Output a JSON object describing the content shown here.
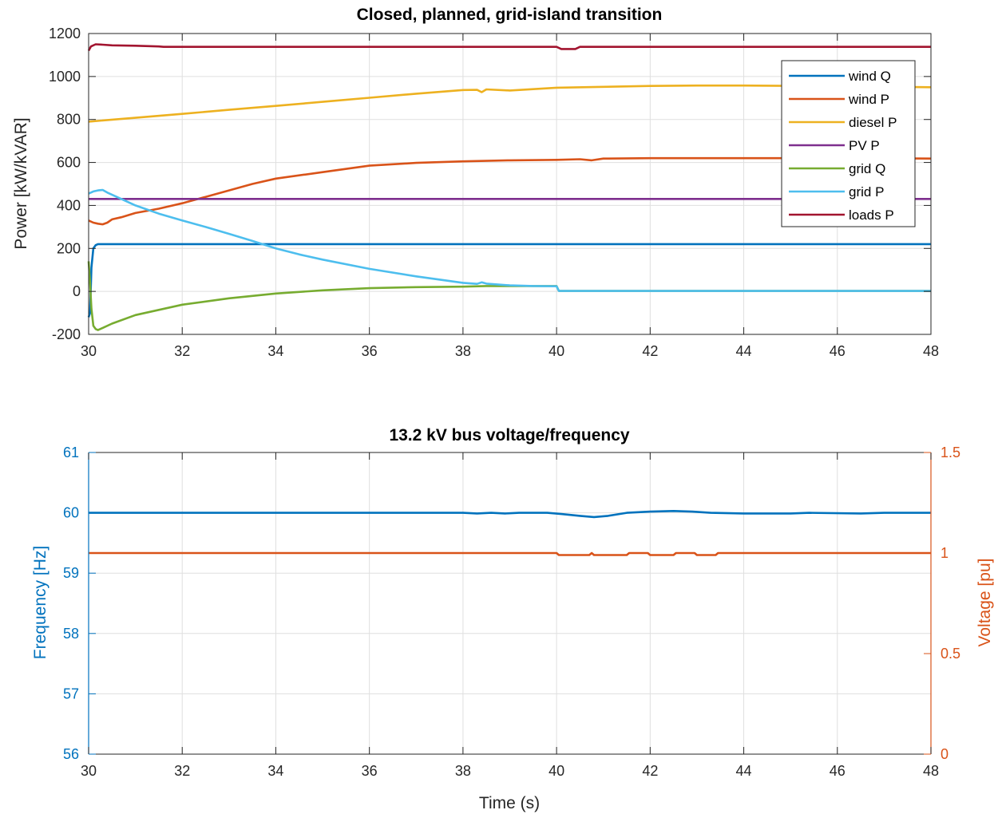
{
  "charts": [
    {
      "id": "top",
      "type": "line",
      "title": "Closed, planned, grid-island transition",
      "xlabel": "",
      "ylabel": "Power [kW/kVAR]",
      "xlim": [
        30,
        48
      ],
      "ylim": [
        -200,
        1200
      ],
      "xticks": [
        30,
        32,
        34,
        36,
        38,
        40,
        42,
        44,
        46,
        48
      ],
      "yticks": [
        -200,
        0,
        200,
        400,
        600,
        800,
        1000,
        1200
      ],
      "grid": true,
      "legend_position": "top-right",
      "series": [
        {
          "name": "wind Q",
          "color": "#0072BD",
          "points": [
            [
              30.0,
              -120
            ],
            [
              30.03,
              -100
            ],
            [
              30.06,
              110
            ],
            [
              30.1,
              200
            ],
            [
              30.15,
              215
            ],
            [
              30.2,
              220
            ],
            [
              31,
              220
            ],
            [
              40,
              220
            ],
            [
              48,
              220
            ]
          ]
        },
        {
          "name": "wind P",
          "color": "#D95319",
          "points": [
            [
              30.0,
              330
            ],
            [
              30.1,
              320
            ],
            [
              30.2,
              315
            ],
            [
              30.3,
              312
            ],
            [
              30.4,
              320
            ],
            [
              30.5,
              335
            ],
            [
              30.7,
              345
            ],
            [
              31,
              365
            ],
            [
              31.5,
              385
            ],
            [
              32,
              410
            ],
            [
              32.5,
              440
            ],
            [
              33,
              470
            ],
            [
              33.5,
              500
            ],
            [
              34,
              525
            ],
            [
              35,
              555
            ],
            [
              36,
              585
            ],
            [
              37,
              598
            ],
            [
              38,
              605
            ],
            [
              39,
              610
            ],
            [
              40,
              612
            ],
            [
              40.5,
              615
            ],
            [
              40.75,
              610
            ],
            [
              41,
              618
            ],
            [
              42,
              620
            ],
            [
              44,
              620
            ],
            [
              46,
              620
            ],
            [
              48,
              618
            ]
          ]
        },
        {
          "name": "diesel P",
          "color": "#EDB120",
          "points": [
            [
              30.0,
              790
            ],
            [
              31,
              808
            ],
            [
              32,
              826
            ],
            [
              33,
              845
            ],
            [
              34,
              863
            ],
            [
              35,
              882
            ],
            [
              36,
              901
            ],
            [
              37,
              920
            ],
            [
              38,
              937
            ],
            [
              38.3,
              938
            ],
            [
              38.4,
              927
            ],
            [
              38.5,
              940
            ],
            [
              39,
              935
            ],
            [
              40,
              948
            ],
            [
              41,
              952
            ],
            [
              42,
              956
            ],
            [
              43,
              958
            ],
            [
              44,
              958
            ],
            [
              46,
              955
            ],
            [
              48,
              950
            ]
          ]
        },
        {
          "name": "PV P",
          "color": "#7E2F8E",
          "points": [
            [
              30.0,
              430
            ],
            [
              48,
              430
            ]
          ]
        },
        {
          "name": "grid Q",
          "color": "#77AC30",
          "points": [
            [
              30.0,
              140
            ],
            [
              30.03,
              40
            ],
            [
              30.06,
              -80
            ],
            [
              30.1,
              -160
            ],
            [
              30.15,
              -175
            ],
            [
              30.2,
              -180
            ],
            [
              30.3,
              -170
            ],
            [
              30.5,
              -150
            ],
            [
              31,
              -110
            ],
            [
              32,
              -62
            ],
            [
              33,
              -32
            ],
            [
              34,
              -10
            ],
            [
              35,
              5
            ],
            [
              36,
              15
            ],
            [
              37,
              20
            ],
            [
              38,
              22
            ],
            [
              38.5,
              25
            ],
            [
              39,
              25
            ],
            [
              40,
              25
            ],
            [
              40.05,
              2
            ],
            [
              48,
              2
            ]
          ]
        },
        {
          "name": "grid P",
          "color": "#4DBEEE",
          "points": [
            [
              30.0,
              455
            ],
            [
              30.1,
              465
            ],
            [
              30.2,
              470
            ],
            [
              30.3,
              472
            ],
            [
              30.4,
              460
            ],
            [
              30.6,
              440
            ],
            [
              31,
              400
            ],
            [
              31.5,
              362
            ],
            [
              32,
              330
            ],
            [
              32.5,
              300
            ],
            [
              33,
              268
            ],
            [
              33.5,
              235
            ],
            [
              34,
              200
            ],
            [
              34.5,
              172
            ],
            [
              35,
              148
            ],
            [
              36,
              105
            ],
            [
              37,
              70
            ],
            [
              38,
              40
            ],
            [
              38.3,
              35
            ],
            [
              38.4,
              42
            ],
            [
              38.5,
              36
            ],
            [
              39,
              28
            ],
            [
              39.5,
              25
            ],
            [
              40,
              24
            ],
            [
              40.05,
              2
            ],
            [
              48,
              2
            ]
          ]
        },
        {
          "name": "loads P",
          "color": "#A2142F",
          "points": [
            [
              30.0,
              1120
            ],
            [
              30.05,
              1140
            ],
            [
              30.15,
              1150
            ],
            [
              30.3,
              1148
            ],
            [
              30.5,
              1145
            ],
            [
              31,
              1143
            ],
            [
              31.5,
              1140
            ],
            [
              31.6,
              1138
            ],
            [
              40,
              1138
            ],
            [
              40.1,
              1128
            ],
            [
              40.4,
              1128
            ],
            [
              40.5,
              1138
            ],
            [
              48,
              1138
            ]
          ]
        }
      ]
    },
    {
      "id": "bottom",
      "type": "line",
      "title": "13.2 kV bus voltage/frequency",
      "xlabel": "Time (s)",
      "ylabel_left": "Frequency [Hz]",
      "ylabel_right": "Voltage [pu]",
      "xlim": [
        30,
        48
      ],
      "ylim_left": [
        56,
        61
      ],
      "ylim_right": [
        0,
        1.5
      ],
      "xticks": [
        30,
        32,
        34,
        36,
        38,
        40,
        42,
        44,
        46,
        48
      ],
      "yticks_left": [
        56,
        57,
        58,
        59,
        60,
        61
      ],
      "yticks_right": [
        0,
        0.5,
        1,
        1.5
      ],
      "left_color": "#0072BD",
      "right_color": "#D95319",
      "grid": true,
      "series": [
        {
          "name": "",
          "axis": "left",
          "color": "#0072BD",
          "points": [
            [
              30,
              60.0
            ],
            [
              38,
              60.0
            ],
            [
              38.3,
              59.99
            ],
            [
              38.6,
              60.0
            ],
            [
              38.9,
              59.99
            ],
            [
              39.2,
              60.0
            ],
            [
              39.8,
              60.0
            ],
            [
              40.1,
              59.98
            ],
            [
              40.5,
              59.95
            ],
            [
              40.8,
              59.93
            ],
            [
              41.1,
              59.95
            ],
            [
              41.5,
              60.0
            ],
            [
              42,
              60.02
            ],
            [
              42.5,
              60.03
            ],
            [
              42.9,
              60.02
            ],
            [
              43.3,
              60.0
            ],
            [
              44,
              59.99
            ],
            [
              45,
              59.99
            ],
            [
              45.4,
              60.0
            ],
            [
              46.5,
              59.99
            ],
            [
              47,
              60.0
            ],
            [
              48,
              60.0
            ]
          ]
        },
        {
          "name": "",
          "axis": "right",
          "color": "#D95319",
          "points": [
            [
              30,
              1.0
            ],
            [
              40,
              1.0
            ],
            [
              40.05,
              0.99
            ],
            [
              40.7,
              0.99
            ],
            [
              40.75,
              1.0
            ],
            [
              40.8,
              0.99
            ],
            [
              41.5,
              0.99
            ],
            [
              41.55,
              1.0
            ],
            [
              41.95,
              1.0
            ],
            [
              42,
              0.99
            ],
            [
              42.5,
              0.99
            ],
            [
              42.55,
              1.0
            ],
            [
              42.95,
              1.0
            ],
            [
              43,
              0.99
            ],
            [
              43.4,
              0.99
            ],
            [
              43.45,
              1.0
            ],
            [
              48,
              1.0
            ]
          ]
        }
      ]
    }
  ]
}
